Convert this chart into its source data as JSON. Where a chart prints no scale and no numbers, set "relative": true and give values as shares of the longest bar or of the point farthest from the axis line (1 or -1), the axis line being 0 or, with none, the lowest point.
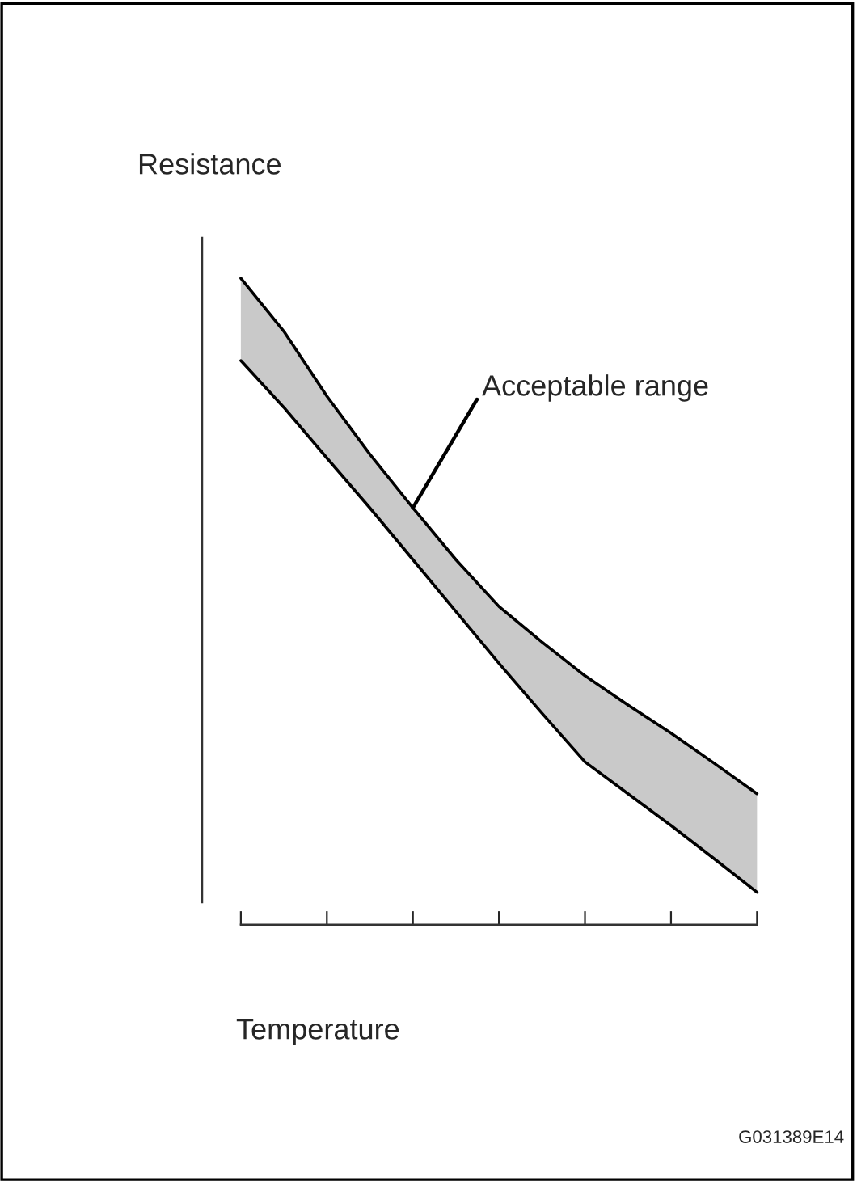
{
  "chart_data": {
    "type": "line",
    "ylabel": "Resistance",
    "xlabel": "Temperature",
    "relative": true,
    "grid": false,
    "legend": false,
    "categories": [
      null,
      null,
      null,
      null,
      null,
      null,
      null,
      null,
      null,
      null,
      null,
      null,
      null
    ],
    "series": [
      {
        "color": "#000000",
        "values": [
          1,
          0.915,
          0.811,
          0.718,
          0.632,
          0.549,
          0.474,
          0.417,
          0.363,
          0.316,
          0.271,
          0.223,
          0.174
        ],
        "upper": [
          1,
          0.915,
          0.811,
          0.718,
          0.632,
          0.549,
          0.474,
          0.417,
          0.363,
          0.316,
          0.271,
          0.223,
          0.174
        ],
        "lower": [
          0.868,
          0.793,
          0.712,
          0.632,
          0.549,
          0.466,
          0.383,
          0.303,
          0.225,
          0.174,
          0.123,
          0.07,
          0.016
        ]
      },
      {
        "color": "#000000",
        "values": [
          0.868,
          0.793,
          0.712,
          0.632,
          0.549,
          0.466,
          0.383,
          0.303,
          0.225,
          0.174,
          0.123,
          0.07,
          0.016
        ]
      }
    ],
    "annotations": [
      "Acceptable range",
      "G031389E14"
    ]
  }
}
